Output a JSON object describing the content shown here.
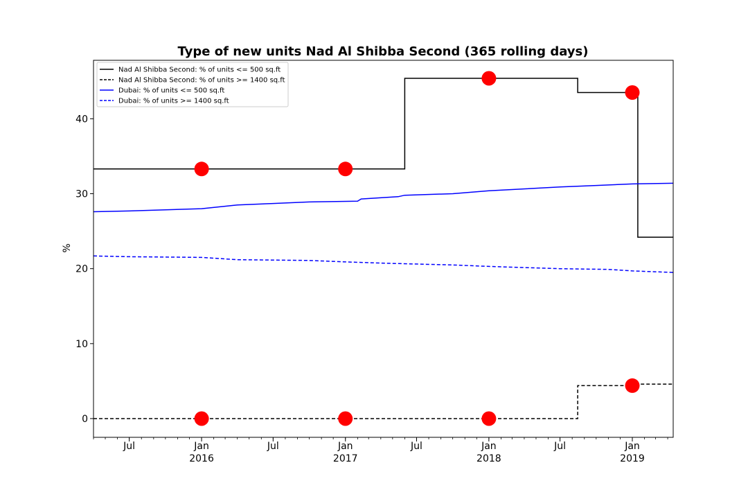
{
  "chart_data": {
    "type": "line",
    "title": "Type of new units Nad Al Shibba Second (365 rolling days)",
    "xlabel": "",
    "ylabel": "%",
    "xlim": [
      "2015-04-01",
      "2019-04-15"
    ],
    "ylim": [
      -2.5,
      47.8
    ],
    "grid": false,
    "legend_position": "top-left",
    "y_ticks": [
      0,
      10,
      20,
      30,
      40
    ],
    "x_ticks": [
      {
        "date": "2015-07-01",
        "label": "Jul"
      },
      {
        "date": "2016-01-01",
        "label": "Jan",
        "year": "2016"
      },
      {
        "date": "2016-07-01",
        "label": "Jul"
      },
      {
        "date": "2017-01-01",
        "label": "Jan",
        "year": "2017"
      },
      {
        "date": "2017-07-01",
        "label": "Jul"
      },
      {
        "date": "2018-01-01",
        "label": "Jan",
        "year": "2018"
      },
      {
        "date": "2018-07-01",
        "label": "Jul"
      },
      {
        "date": "2019-01-01",
        "label": "Jan",
        "year": "2019"
      }
    ],
    "series": [
      {
        "name": "Nad Al Shibba Second: % of units <= 500 sq.ft",
        "color": "#000000",
        "dash": "solid",
        "step": true,
        "points": [
          {
            "x": "2015-04-01",
            "y": 33.3
          },
          {
            "x": "2017-06-01",
            "y": 45.4
          },
          {
            "x": "2018-08-15",
            "y": 43.5
          },
          {
            "x": "2019-01-15",
            "y": 24.2
          },
          {
            "x": "2019-04-15",
            "y": 24.2
          }
        ]
      },
      {
        "name": "Nad Al Shibba Second: % of units >= 1400 sq.ft",
        "color": "#000000",
        "dash": "dashed",
        "step": true,
        "points": [
          {
            "x": "2015-04-01",
            "y": 0
          },
          {
            "x": "2018-08-15",
            "y": 4.4
          },
          {
            "x": "2019-01-05",
            "y": 4.6
          },
          {
            "x": "2019-04-15",
            "y": 4.6
          }
        ]
      },
      {
        "name": "Dubai: % of units <= 500 sq.ft",
        "color": "#0000ff",
        "dash": "solid",
        "step": false,
        "points": [
          {
            "x": "2015-04-01",
            "y": 27.6
          },
          {
            "x": "2015-07-01",
            "y": 27.7
          },
          {
            "x": "2016-01-01",
            "y": 28.0
          },
          {
            "x": "2016-04-01",
            "y": 28.5
          },
          {
            "x": "2016-07-01",
            "y": 28.7
          },
          {
            "x": "2016-10-01",
            "y": 28.9
          },
          {
            "x": "2017-02-01",
            "y": 29.0
          },
          {
            "x": "2017-02-10",
            "y": 29.3
          },
          {
            "x": "2017-05-15",
            "y": 29.6
          },
          {
            "x": "2017-06-01",
            "y": 29.8
          },
          {
            "x": "2017-10-01",
            "y": 30.0
          },
          {
            "x": "2018-01-01",
            "y": 30.4
          },
          {
            "x": "2018-07-01",
            "y": 30.9
          },
          {
            "x": "2018-10-01",
            "y": 31.1
          },
          {
            "x": "2019-01-01",
            "y": 31.3
          },
          {
            "x": "2019-04-15",
            "y": 31.4
          }
        ]
      },
      {
        "name": "Dubai: % of units >= 1400 sq.ft",
        "color": "#0000ff",
        "dash": "dashed",
        "step": false,
        "points": [
          {
            "x": "2015-04-01",
            "y": 21.7
          },
          {
            "x": "2015-07-01",
            "y": 21.6
          },
          {
            "x": "2016-01-01",
            "y": 21.5
          },
          {
            "x": "2016-04-01",
            "y": 21.2
          },
          {
            "x": "2016-10-01",
            "y": 21.1
          },
          {
            "x": "2017-01-01",
            "y": 20.9
          },
          {
            "x": "2017-05-01",
            "y": 20.7
          },
          {
            "x": "2017-10-01",
            "y": 20.5
          },
          {
            "x": "2018-01-01",
            "y": 20.3
          },
          {
            "x": "2018-07-01",
            "y": 20.0
          },
          {
            "x": "2018-11-01",
            "y": 19.9
          },
          {
            "x": "2019-01-01",
            "y": 19.7
          },
          {
            "x": "2019-04-15",
            "y": 19.5
          }
        ]
      }
    ],
    "markers": {
      "color": "#ff0000",
      "points": [
        {
          "x": "2016-01-01",
          "y": 33.3
        },
        {
          "x": "2017-01-01",
          "y": 33.3
        },
        {
          "x": "2018-01-01",
          "y": 45.4
        },
        {
          "x": "2019-01-01",
          "y": 43.5
        },
        {
          "x": "2016-01-01",
          "y": 0
        },
        {
          "x": "2017-01-01",
          "y": 0
        },
        {
          "x": "2018-01-01",
          "y": 0
        },
        {
          "x": "2019-01-01",
          "y": 4.4
        }
      ]
    }
  }
}
